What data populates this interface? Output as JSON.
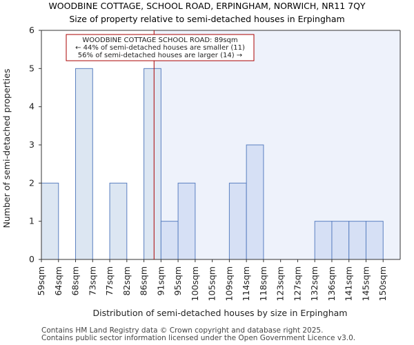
{
  "title": "WOODBINE COTTAGE, SCHOOL ROAD, ERPINGHAM, NORWICH, NR11 7QY",
  "subtitle": "Size of property relative to semi-detached houses in Erpingham",
  "footer": {
    "line1": "Contains HM Land Registry data © Crown copyright and database right 2025.",
    "line2": "Contains public sector information licensed under the Open Government Licence v3.0."
  },
  "chart_data": {
    "type": "bar",
    "title": "WOODBINE COTTAGE, SCHOOL ROAD, ERPINGHAM, NORWICH, NR11 7QY",
    "subtitle": "Size of property relative to semi-detached houses in Erpingham",
    "xlabel": "Distribution of semi-detached houses by size in Erpingham",
    "ylabel": "Number of semi-detached properties",
    "categories": [
      "59sqm",
      "64sqm",
      "68sqm",
      "73sqm",
      "77sqm",
      "82sqm",
      "86sqm",
      "91sqm",
      "95sqm",
      "100sqm",
      "105sqm",
      "109sqm",
      "114sqm",
      "118sqm",
      "123sqm",
      "127sqm",
      "132sqm",
      "136sqm",
      "141sqm",
      "145sqm",
      "150sqm"
    ],
    "values": [
      2,
      0,
      5,
      0,
      2,
      0,
      5,
      1,
      2,
      0,
      0,
      2,
      3,
      0,
      0,
      0,
      1,
      1,
      1,
      1,
      0
    ],
    "ylim": [
      0,
      6
    ],
    "yticks": [
      "0",
      "1",
      "2",
      "3",
      "4",
      "5",
      "6"
    ],
    "subject_value_sqm": 89,
    "subject_range": [
      89,
      150
    ],
    "colors": {
      "bar_before": "#dce6f2",
      "bar_after": "#d6e0f5",
      "bar_edge": "#5a7fc0",
      "highlight_bg": "#eef2fb",
      "marker_line": "#aa0000",
      "annotation_border": "#aa0000"
    },
    "annotation": {
      "line1": "WOODBINE COTTAGE SCHOOL ROAD: 89sqm",
      "line2": "← 44% of semi-detached houses are smaller (11)",
      "line3": "56% of semi-detached houses are larger (14) →"
    },
    "grid": false
  }
}
